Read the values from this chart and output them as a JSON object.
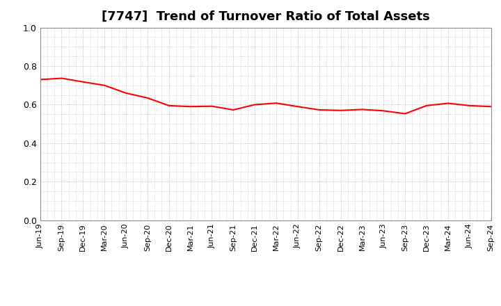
{
  "title": "[7747]  Trend of Turnover Ratio of Total Assets",
  "title_fontsize": 13,
  "line_color": "#FF0000",
  "line_width": 1.5,
  "background_color": "#FFFFFF",
  "grid_color": "#AAAAAA",
  "ylim": [
    0.0,
    1.0
  ],
  "yticks": [
    0.0,
    0.2,
    0.4,
    0.6,
    0.8,
    1.0
  ],
  "x_labels": [
    "Jun-19",
    "Sep-19",
    "Dec-19",
    "Mar-20",
    "Jun-20",
    "Sep-20",
    "Dec-20",
    "Mar-21",
    "Jun-21",
    "Sep-21",
    "Dec-21",
    "Mar-22",
    "Jun-22",
    "Sep-22",
    "Dec-22",
    "Mar-23",
    "Jun-23",
    "Sep-23",
    "Dec-23",
    "Mar-24",
    "Jun-24",
    "Sep-24"
  ],
  "values": [
    0.73,
    0.737,
    0.718,
    0.7,
    0.66,
    0.635,
    0.595,
    0.59,
    0.592,
    0.573,
    0.6,
    0.608,
    0.59,
    0.573,
    0.57,
    0.575,
    0.568,
    0.553,
    0.595,
    0.607,
    0.595,
    0.59
  ]
}
